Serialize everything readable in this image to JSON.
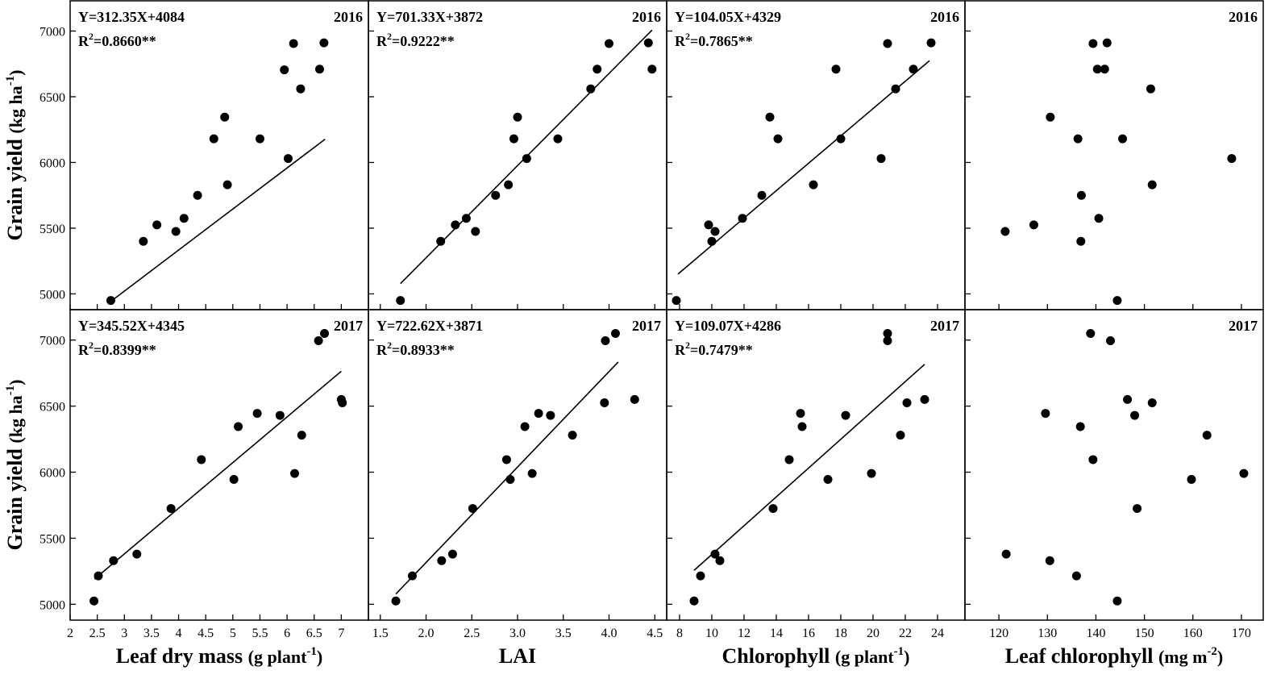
{
  "chart_data": {
    "type": "scatter",
    "ylabel": "Grain yield (kg ha-1)",
    "ylim": [
      4880,
      7230
    ],
    "yticks": [
      "5000",
      "5500",
      "6000",
      "6500",
      "7000"
    ],
    "columns": [
      {
        "xlabel": "Leaf dry mass (g plant-1)",
        "xlim": [
          2,
          7.5
        ],
        "xticks": [
          "2",
          "2.5",
          "3",
          "3.5",
          "4",
          "4.5",
          "5",
          "5.5",
          "6",
          "6.5",
          "7"
        ]
      },
      {
        "xlabel": "LAI",
        "xlim": [
          1.37,
          4.63
        ],
        "xticks": [
          "1.5",
          "2.0",
          "2.5",
          "3.0",
          "3.5",
          "4.0",
          "4.5"
        ]
      },
      {
        "xlabel": "Chlorophyll (g plant-1)",
        "xlim": [
          7.2,
          25.7
        ],
        "xticks": [
          "8",
          "10",
          "12",
          "14",
          "16",
          "18",
          "20",
          "22",
          "24"
        ]
      },
      {
        "xlabel": "Leaf chlorophyll (mg m-2)",
        "xlim": [
          113,
          174.5
        ],
        "xticks": [
          "120",
          "130",
          "140",
          "150",
          "160",
          "170"
        ]
      }
    ],
    "panels": [
      {
        "year": "2016",
        "eq": "Y=312.35X+4084",
        "r2": "=0.8660**",
        "fit": {
          "slope": 312.35,
          "intercept": 4084,
          "x": [
            2.75,
            6.7
          ]
        },
        "points": [
          [
            2.75,
            4950
          ],
          [
            3.35,
            5400
          ],
          [
            3.6,
            5525
          ],
          [
            3.95,
            5475
          ],
          [
            4.1,
            5575
          ],
          [
            4.35,
            5750
          ],
          [
            4.65,
            6180
          ],
          [
            4.85,
            6345
          ],
          [
            4.9,
            5830
          ],
          [
            5.5,
            6180
          ],
          [
            5.95,
            6705
          ],
          [
            6.02,
            6030
          ],
          [
            6.12,
            6905
          ],
          [
            6.25,
            6560
          ],
          [
            6.6,
            6710
          ],
          [
            6.68,
            6910
          ]
        ]
      },
      {
        "year": "2016",
        "eq": "Y=701.33X+3872",
        "r2": "=0.9222**",
        "fit": {
          "slope": 701.33,
          "intercept": 3872,
          "x": [
            1.72,
            4.47
          ]
        },
        "points": [
          [
            1.72,
            4950
          ],
          [
            2.16,
            5400
          ],
          [
            2.32,
            5525
          ],
          [
            2.44,
            5575
          ],
          [
            2.54,
            5475
          ],
          [
            2.76,
            5750
          ],
          [
            2.9,
            5830
          ],
          [
            2.96,
            6180
          ],
          [
            3.0,
            6345
          ],
          [
            3.1,
            6030
          ],
          [
            3.44,
            6180
          ],
          [
            3.8,
            6560
          ],
          [
            3.87,
            6710
          ],
          [
            4.0,
            6905
          ],
          [
            4.43,
            6910
          ],
          [
            4.47,
            6710
          ]
        ]
      },
      {
        "year": "2016",
        "eq": "Y=104.05X+4329",
        "r2": "=0.7865**",
        "fit": {
          "slope": 104.05,
          "intercept": 4329,
          "x": [
            7.9,
            23.5
          ]
        },
        "points": [
          [
            7.8,
            4950
          ],
          [
            9.8,
            5525
          ],
          [
            10.0,
            5400
          ],
          [
            10.2,
            5475
          ],
          [
            11.9,
            5575
          ],
          [
            13.1,
            5750
          ],
          [
            13.6,
            6345
          ],
          [
            14.1,
            6180
          ],
          [
            16.3,
            5830
          ],
          [
            17.7,
            6710
          ],
          [
            18.0,
            6180
          ],
          [
            20.5,
            6030
          ],
          [
            20.9,
            6905
          ],
          [
            21.4,
            6560
          ],
          [
            22.5,
            6710
          ],
          [
            23.6,
            6910
          ]
        ]
      },
      {
        "year": "2016",
        "eq": "",
        "r2": "",
        "fit": null,
        "points": [
          [
            121.3,
            5475
          ],
          [
            127.2,
            5525
          ],
          [
            130.6,
            6345
          ],
          [
            136.3,
            6180
          ],
          [
            136.9,
            5400
          ],
          [
            137.0,
            5750
          ],
          [
            139.4,
            6905
          ],
          [
            140.3,
            6710
          ],
          [
            140.6,
            5575
          ],
          [
            141.8,
            6710
          ],
          [
            142.3,
            6910
          ],
          [
            144.4,
            4950
          ],
          [
            145.5,
            6180
          ],
          [
            151.3,
            6560
          ],
          [
            151.6,
            5830
          ],
          [
            168.0,
            6030
          ]
        ]
      },
      {
        "year": "2017",
        "eq": "Y=345.52X+4345",
        "r2": "=0.8399**",
        "fit": {
          "slope": 345.52,
          "intercept": 4345,
          "x": [
            2.45,
            7.0
          ]
        },
        "points": [
          [
            2.44,
            5025
          ],
          [
            2.52,
            5215
          ],
          [
            2.8,
            5330
          ],
          [
            3.23,
            5380
          ],
          [
            3.86,
            5725
          ],
          [
            4.42,
            6095
          ],
          [
            5.02,
            5945
          ],
          [
            5.1,
            6345
          ],
          [
            5.45,
            6445
          ],
          [
            5.87,
            6430
          ],
          [
            6.14,
            5990
          ],
          [
            6.27,
            6280
          ],
          [
            6.58,
            6995
          ],
          [
            6.69,
            7050
          ],
          [
            7.0,
            6550
          ],
          [
            7.02,
            6525
          ]
        ]
      },
      {
        "year": "2017",
        "eq": "Y=722.62X+3871",
        "r2": "=0.8933**",
        "fit": {
          "slope": 722.62,
          "intercept": 3871,
          "x": [
            1.67,
            4.1
          ]
        },
        "points": [
          [
            1.67,
            5025
          ],
          [
            1.85,
            5215
          ],
          [
            2.17,
            5330
          ],
          [
            2.29,
            5380
          ],
          [
            2.51,
            5725
          ],
          [
            2.88,
            6095
          ],
          [
            2.92,
            5945
          ],
          [
            3.08,
            6345
          ],
          [
            3.16,
            5990
          ],
          [
            3.23,
            6445
          ],
          [
            3.36,
            6430
          ],
          [
            3.6,
            6280
          ],
          [
            3.95,
            6525
          ],
          [
            3.96,
            6995
          ],
          [
            4.07,
            7050
          ],
          [
            4.28,
            6550
          ]
        ]
      },
      {
        "year": "2017",
        "eq": "Y=109.07X+4286",
        "r2": "=0.7479**",
        "fit": {
          "slope": 109.07,
          "intercept": 4286,
          "x": [
            8.9,
            23.2
          ]
        },
        "points": [
          [
            8.9,
            5025
          ],
          [
            9.3,
            5215
          ],
          [
            10.2,
            5380
          ],
          [
            10.5,
            5330
          ],
          [
            13.8,
            5725
          ],
          [
            14.8,
            6095
          ],
          [
            15.5,
            6445
          ],
          [
            15.6,
            6345
          ],
          [
            17.2,
            5945
          ],
          [
            18.3,
            6430
          ],
          [
            19.9,
            5990
          ],
          [
            20.9,
            7050
          ],
          [
            20.9,
            6995
          ],
          [
            21.7,
            6280
          ],
          [
            22.1,
            6525
          ],
          [
            23.2,
            6550
          ]
        ]
      },
      {
        "year": "2017",
        "eq": "",
        "r2": "",
        "fit": null,
        "points": [
          [
            121.5,
            5380
          ],
          [
            129.6,
            6445
          ],
          [
            130.5,
            5330
          ],
          [
            136.0,
            5215
          ],
          [
            136.8,
            6345
          ],
          [
            138.9,
            7050
          ],
          [
            139.4,
            6095
          ],
          [
            143.0,
            6995
          ],
          [
            144.4,
            5025
          ],
          [
            146.5,
            6550
          ],
          [
            148.0,
            6430
          ],
          [
            148.5,
            5725
          ],
          [
            151.6,
            6525
          ],
          [
            159.7,
            5945
          ],
          [
            162.9,
            6280
          ],
          [
            170.5,
            5990
          ]
        ]
      }
    ]
  }
}
